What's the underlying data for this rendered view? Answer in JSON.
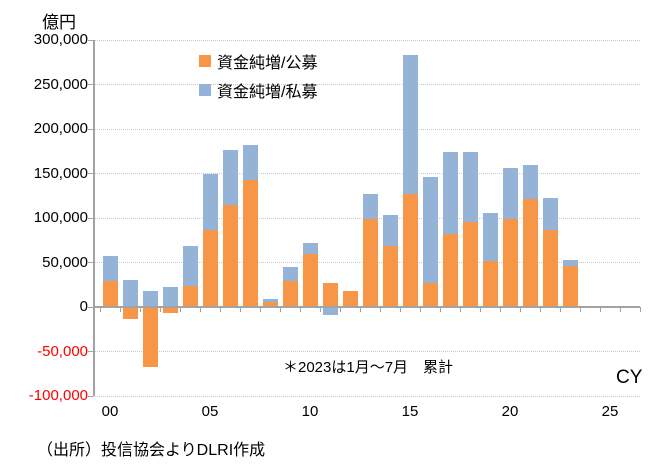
{
  "unit_label": "億円",
  "cy_label": "CY",
  "footnote": "＊2023は1月～7月　累計",
  "source": "（出所）投信協会よりDLRI作成",
  "colors": {
    "public_offering": "#F79646",
    "private_placement": "#95B3D7",
    "axis": "#A3A3A3",
    "gridline": "#C8C8C8",
    "negative_tick_label": "#FF0000"
  },
  "legend": [
    {
      "label": "資金純増/公募",
      "color": "#F79646"
    },
    {
      "label": "資金純増/私募",
      "color": "#95B3D7"
    }
  ],
  "chart_data": {
    "type": "bar",
    "stacked": true,
    "unit": "億円",
    "xlabel": "CY",
    "ylim": [
      -100000,
      300000
    ],
    "ytick_step": 50000,
    "grid": "dotted-horizontal",
    "legend_position": "top-inside",
    "categories": [
      "00",
      "01",
      "02",
      "03",
      "04",
      "05",
      "06",
      "07",
      "08",
      "09",
      "10",
      "11",
      "12",
      "13",
      "14",
      "15",
      "16",
      "17",
      "18",
      "19",
      "20",
      "21",
      "22",
      "23"
    ],
    "series": [
      {
        "name": "資金純増/公募",
        "color": "#F79646",
        "values": [
          29000,
          -14000,
          -67000,
          -7000,
          24000,
          86000,
          115000,
          143000,
          6000,
          29000,
          60000,
          27000,
          18000,
          99000,
          68000,
          127000,
          27000,
          82000,
          96000,
          52000,
          99000,
          121000,
          87000,
          46000
        ]
      },
      {
        "name": "資金純増/私募",
        "color": "#95B3D7",
        "values": [
          28000,
          30000,
          18000,
          22000,
          44000,
          64000,
          61000,
          39000,
          3000,
          16000,
          12000,
          -9000,
          0,
          28000,
          35000,
          156000,
          119000,
          92000,
          78000,
          54000,
          57000,
          38000,
          36000,
          7000
        ]
      }
    ],
    "y_ticks": [
      {
        "value": 300000,
        "label": "300,000"
      },
      {
        "value": 250000,
        "label": "250,000"
      },
      {
        "value": 200000,
        "label": "200,000"
      },
      {
        "value": 150000,
        "label": "150,000"
      },
      {
        "value": 100000,
        "label": "100,000"
      },
      {
        "value": 50000,
        "label": "50,000"
      },
      {
        "value": 0,
        "label": "0"
      },
      {
        "value": -50000,
        "label": "-50,000"
      },
      {
        "value": -100000,
        "label": "-100,000"
      }
    ],
    "x_ticks": [
      {
        "year_index": 0,
        "label": "00"
      },
      {
        "year_index": 5,
        "label": "05"
      },
      {
        "year_index": 10,
        "label": "10"
      },
      {
        "year_index": 15,
        "label": "15"
      },
      {
        "year_index": 20,
        "label": "20"
      },
      {
        "year_index": 25,
        "label": "25"
      }
    ]
  }
}
